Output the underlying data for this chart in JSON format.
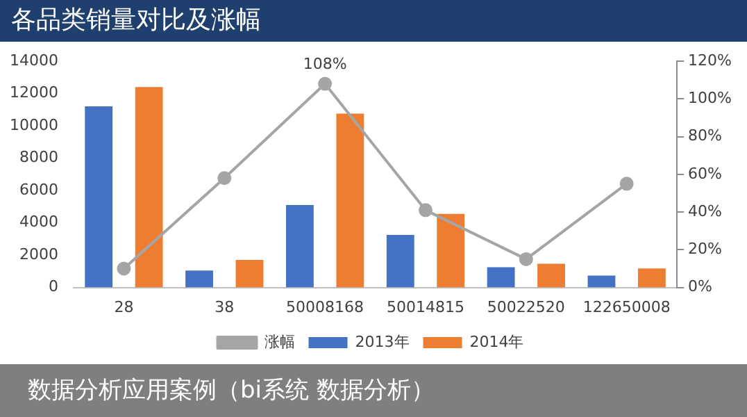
{
  "chart_data": {
    "type": "bar",
    "title": "各品类销量对比及涨幅",
    "categories": [
      "28",
      "38",
      "50008168",
      "50014815",
      "50022520",
      "122650008"
    ],
    "series": [
      {
        "name": "2013年",
        "color": "#4472c4",
        "values": [
          11200,
          1050,
          5100,
          3250,
          1250,
          740
        ]
      },
      {
        "name": "2014年",
        "color": "#ed7d31",
        "values": [
          12400,
          1700,
          10750,
          4550,
          1470,
          1180
        ]
      },
      {
        "name": "涨幅",
        "type": "line",
        "axis": "y2",
        "color": "#a5a5a5",
        "marker": "circle",
        "values": [
          10,
          58,
          108,
          41,
          15,
          55
        ],
        "value_labels": [
          null,
          null,
          "108%",
          null,
          null,
          null
        ]
      }
    ],
    "ylim": [
      0,
      14000
    ],
    "yticks": [
      0,
      2000,
      4000,
      6000,
      8000,
      10000,
      12000,
      14000
    ],
    "y2lim": [
      0,
      120
    ],
    "y2ticks": [
      {
        "value": 0,
        "label": "0%"
      },
      {
        "value": 20,
        "label": "20%"
      },
      {
        "value": 40,
        "label": "40%"
      },
      {
        "value": 60,
        "label": "60%"
      },
      {
        "value": 80,
        "label": "80%"
      },
      {
        "value": 100,
        "label": "100%"
      },
      {
        "value": 120,
        "label": "120%"
      }
    ],
    "legend": "bottom",
    "grid": false,
    "annotations": [
      "数据分析应用案例（bi系统 数据分析）"
    ]
  }
}
